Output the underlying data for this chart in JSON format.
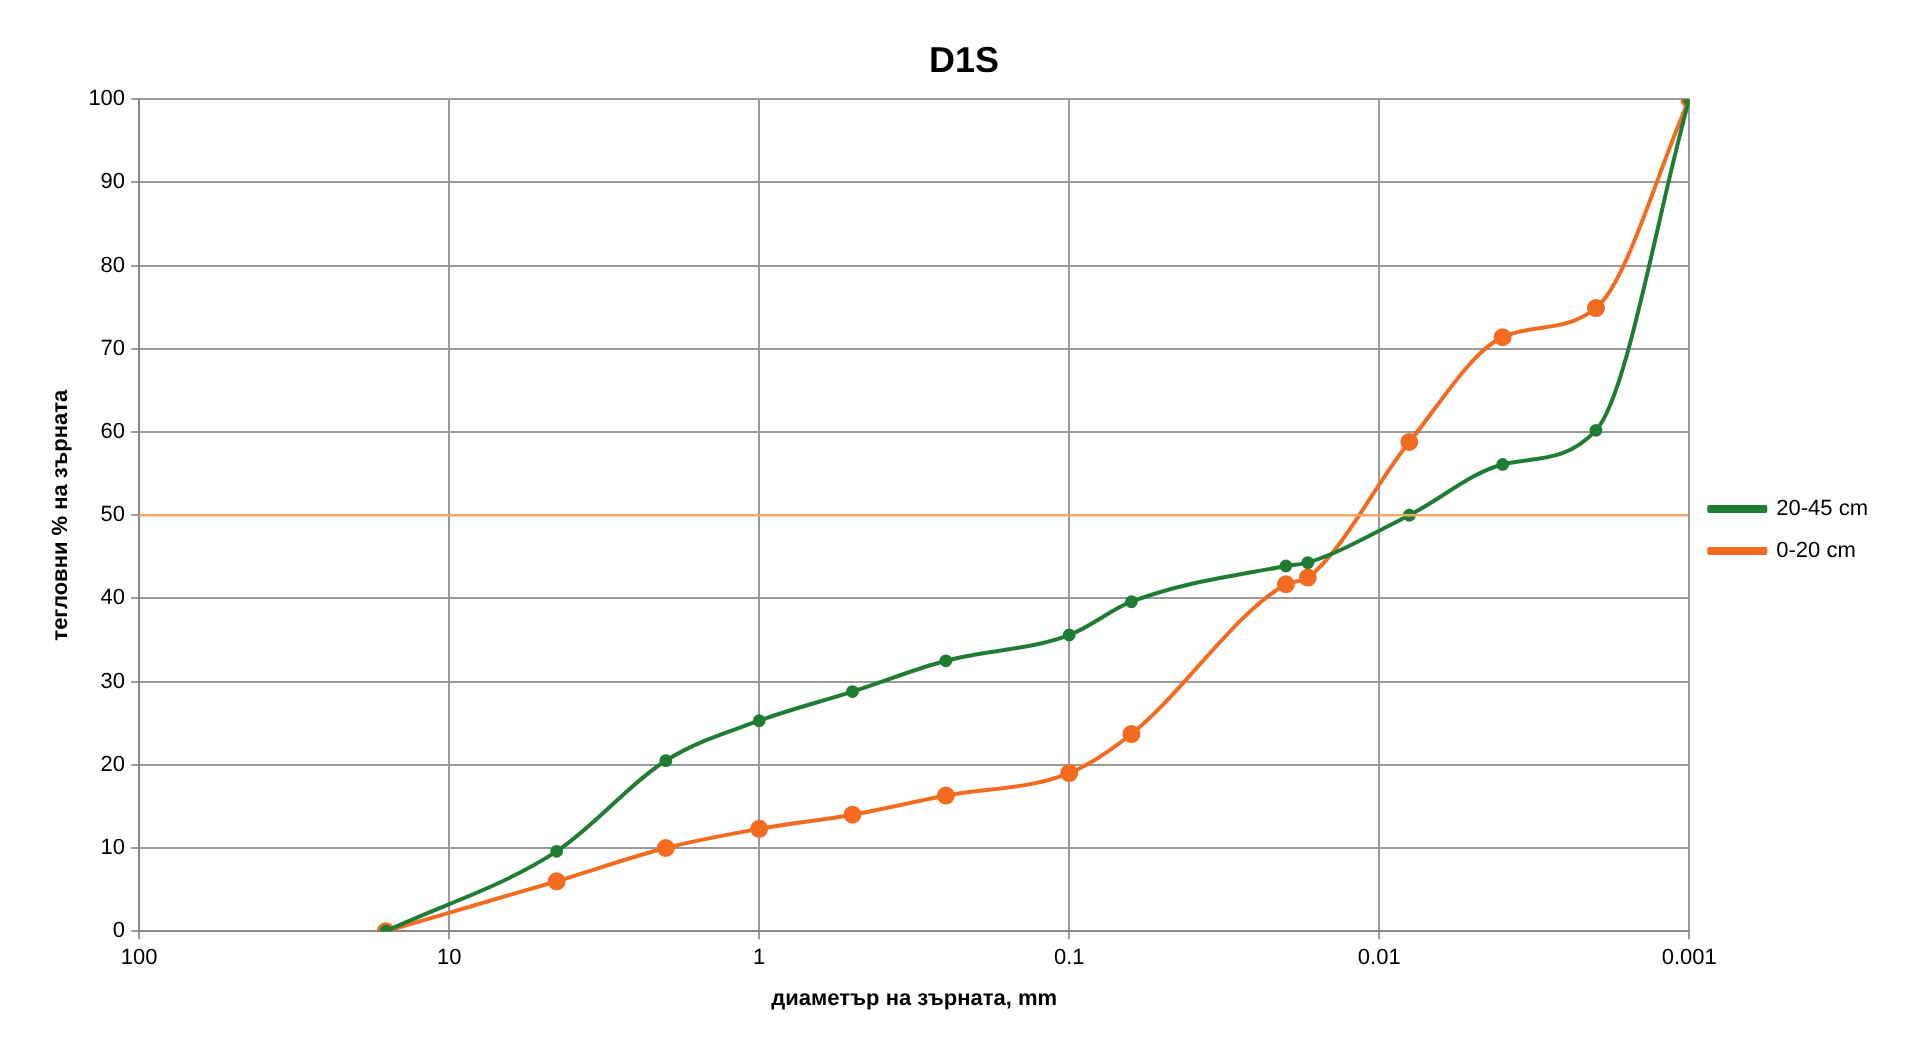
{
  "chart_data": {
    "type": "line",
    "title": "D1S",
    "xlabel": "диаметър на зърната, mm",
    "ylabel": "тегловни % на зърната",
    "log": "x",
    "xlim": [
      100,
      0.001
    ],
    "xticks": [
      100,
      10,
      1,
      0.1,
      0.01,
      0.001
    ],
    "ylim": [
      0,
      100
    ],
    "yticks": [
      0,
      10,
      20,
      30,
      40,
      50,
      60,
      70,
      80,
      90,
      100
    ],
    "grid": true,
    "legend": "right",
    "marker": "circle",
    "line_style": "solid",
    "ref_lines": [
      {
        "axis": "y",
        "value": 50,
        "color": "#f4a76b"
      }
    ],
    "series": [
      {
        "name": "0-20 cm",
        "color": "#f26b21",
        "x": [
          16,
          4.5,
          2,
          1,
          0.5,
          0.25,
          0.1,
          0.063,
          0.02,
          0.017,
          0.008,
          0.004,
          0.002,
          0.001
        ],
        "values": [
          0,
          6,
          10,
          12.3,
          14,
          16.3,
          19,
          23.7,
          41.7,
          42.5,
          58.8,
          71.4,
          74.9,
          100
        ]
      },
      {
        "name": "20-45 cm",
        "color": "#1e7d32",
        "x": [
          16,
          4.5,
          2,
          1,
          0.5,
          0.25,
          0.1,
          0.063,
          0.02,
          0.017,
          0.008,
          0.004,
          0.002,
          0.001
        ],
        "values": [
          0,
          9.6,
          20.5,
          25.3,
          28.8,
          32.5,
          35.6,
          39.6,
          43.9,
          44.3,
          50,
          56.1,
          60.2,
          100
        ]
      }
    ]
  }
}
